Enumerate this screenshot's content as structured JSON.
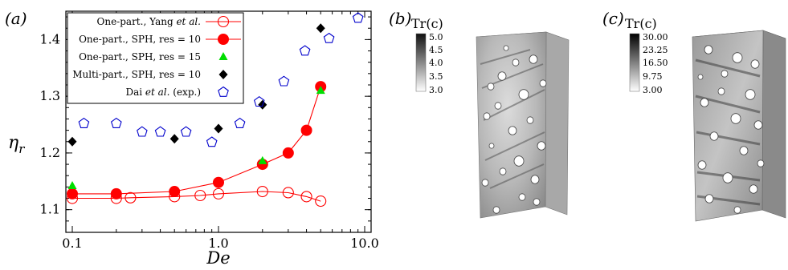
{
  "chart_data": [
    {
      "type": "scatter",
      "panel_label": "(a)",
      "xlabel": "De",
      "ylabel": "η_r",
      "ylabel_main": "η",
      "ylabel_sub": "r",
      "xscale": "log",
      "xlim": [
        0.1,
        10.0
      ],
      "ylim": [
        1.06,
        1.45
      ],
      "xticks": [
        {
          "value": 0.1,
          "label": "0.1"
        },
        {
          "value": 1.0,
          "label": "1.0"
        },
        {
          "value": 10.0,
          "label": "10.0"
        }
      ],
      "yticks": [
        {
          "value": 1.1,
          "label": "1.1"
        },
        {
          "value": 1.2,
          "label": "1.2"
        },
        {
          "value": 1.3,
          "label": "1.3"
        },
        {
          "value": 1.4,
          "label": "1.4"
        }
      ],
      "legend_position": "top-left",
      "series": [
        {
          "name": "One-part., Yang et al.",
          "legend_parts": [
            [
              "One-part., Yang ",
              "n"
            ],
            [
              "et al.",
              "i"
            ]
          ],
          "marker": "open-circle",
          "color": "#ff0000",
          "line": true,
          "x": [
            0.1,
            0.2,
            0.25,
            0.5,
            0.75,
            1.0,
            2.0,
            3.0,
            4.0,
            5.0
          ],
          "y": [
            1.12,
            1.12,
            1.121,
            1.123,
            1.125,
            1.128,
            1.132,
            1.13,
            1.123,
            1.115
          ]
        },
        {
          "name": "One-part., SPH, res = 10",
          "legend_parts": [
            [
              "One-part., SPH, res = 10",
              "n"
            ]
          ],
          "marker": "filled-circle",
          "color": "#ff0000",
          "line": true,
          "x": [
            0.1,
            0.2,
            0.5,
            1.0,
            2.0,
            3.0,
            4.0,
            5.0
          ],
          "y": [
            1.128,
            1.128,
            1.132,
            1.148,
            1.18,
            1.2,
            1.24,
            1.317
          ]
        },
        {
          "name": "One-part., SPH, res = 15",
          "legend_parts": [
            [
              "One-part., SPH, res = 15",
              "n"
            ]
          ],
          "marker": "triangle",
          "color": "#00dd00",
          "line": false,
          "x": [
            0.1,
            2.0,
            5.0
          ],
          "y": [
            1.142,
            1.186,
            1.31
          ]
        },
        {
          "name": "Multi-part., SPH, res = 10",
          "legend_parts": [
            [
              "Multi-part., SPH, res = 10",
              "n"
            ]
          ],
          "marker": "diamond",
          "color": "#000000",
          "line": false,
          "x": [
            0.1,
            0.5,
            1.0,
            2.0,
            5.0
          ],
          "y": [
            1.22,
            1.225,
            1.243,
            1.285,
            1.42
          ]
        },
        {
          "name": "Dai et al. (exp.)",
          "legend_parts": [
            [
              "Dai ",
              "n"
            ],
            [
              "et al.",
              "i"
            ],
            [
              " (exp.)",
              "n"
            ]
          ],
          "marker": "open-pentagon",
          "color": "#0000cc",
          "line": false,
          "x": [
            0.12,
            0.2,
            0.3,
            0.4,
            0.6,
            0.9,
            1.4,
            1.9,
            2.8,
            3.9,
            5.7,
            9.0
          ],
          "y": [
            1.252,
            1.252,
            1.237,
            1.237,
            1.237,
            1.219,
            1.252,
            1.29,
            1.326,
            1.38,
            1.402,
            1.438
          ]
        }
      ]
    }
  ],
  "panels": {
    "b": {
      "label": "(b)",
      "colorbar": {
        "title": "Tr(c)",
        "ticks": [
          "5.0",
          "4.5",
          "4.0",
          "3.5",
          "3.0"
        ]
      }
    },
    "c": {
      "label": "(c)",
      "colorbar": {
        "title": "Tr(c)",
        "ticks": [
          "30.00",
          "23.25",
          "16.50",
          "9.75",
          "3.00"
        ]
      }
    }
  },
  "colors": {
    "red": "#ff0000",
    "green": "#00dd00",
    "blue": "#0000cc",
    "black": "#000000"
  }
}
